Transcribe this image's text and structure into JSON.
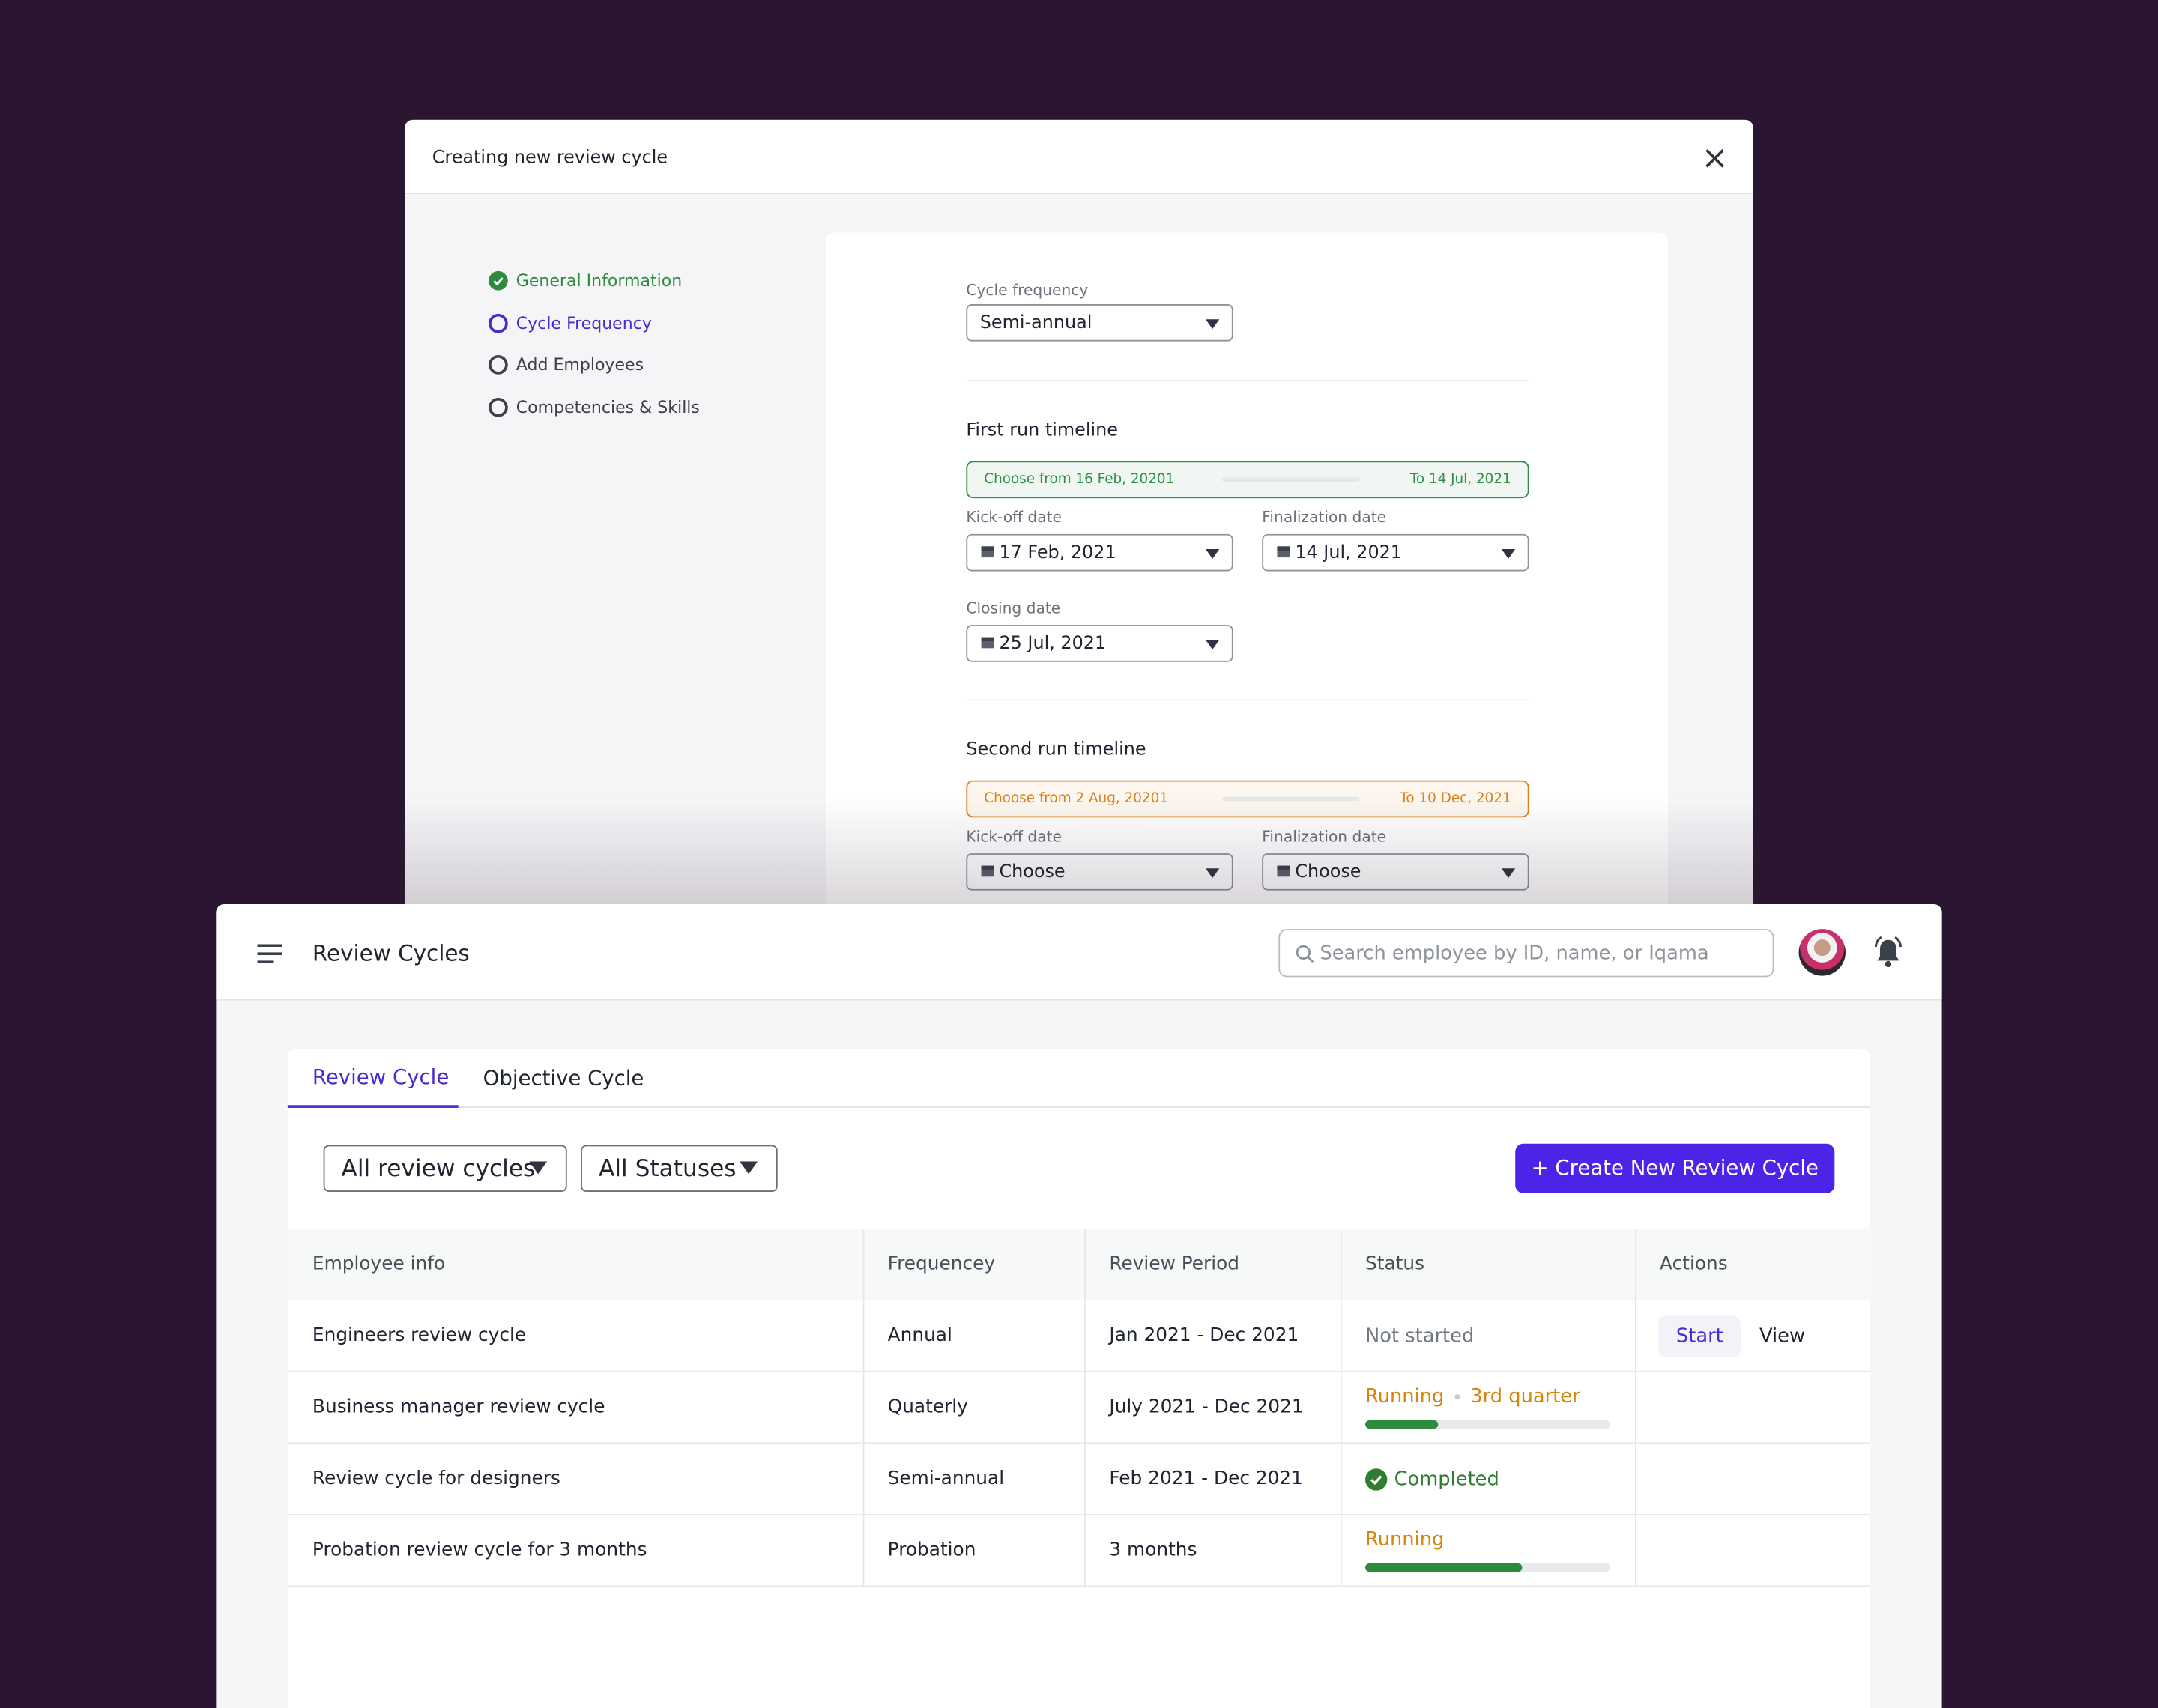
{
  "modal": {
    "title": "Creating new review cycle",
    "steps": [
      "General Information",
      "Cycle Frequency",
      "Add Employees",
      "Competencies & Skills"
    ],
    "form": {
      "cycle_frequency_label": "Cycle frequency",
      "cycle_frequency": "Semi-annual",
      "first_run": {
        "title": "First run timeline",
        "range_from": "Choose from 16 Feb, 20201",
        "range_to": "To 14 Jul, 2021",
        "color": "#2f8f45",
        "kickoff_label": "Kick-off date",
        "kickoff": "17 Feb, 2021",
        "final_label": "Finalization date",
        "final": "14 Jul, 2021",
        "closing_label": "Closing date",
        "closing": "25 Jul, 2021"
      },
      "second_run": {
        "title": "Second run timeline",
        "range_from": "Choose from 2 Aug, 20201",
        "range_to": "To 10 Dec, 2021",
        "color": "#d9821a",
        "kickoff_label": "Kick-off date",
        "kickoff": "Choose",
        "final_label": "Finalization date",
        "final": "Choose"
      }
    }
  },
  "app": {
    "title": "Review Cycles",
    "search_placeholder": "Search employee by ID, name, or Iqama",
    "tabs": [
      "Review Cycle",
      "Objective Cycle"
    ],
    "filters": [
      "All review cycles",
      "All Statuses"
    ],
    "create_button": "+ Create New Review Cycle",
    "table": {
      "headers": [
        "Employee info",
        "Frequencey",
        "Review Period",
        "Status",
        "Actions"
      ],
      "rows": [
        {
          "name": "Engineers review cycle",
          "frequency": "Annual",
          "period": "Jan 2021 - Dec 2021",
          "status": "Not started",
          "status_color": "#707682",
          "actions": [
            "Start",
            "View"
          ]
        },
        {
          "name": "Business manager review cycle",
          "frequency": "Quaterly",
          "period": "July 2021 - Dec 2021",
          "status": "Running",
          "status_color": "#d4860b",
          "phase": "3rd quarter",
          "progress": 30
        },
        {
          "name": "Review cycle for designers",
          "frequency": "Semi-annual",
          "period": "Feb 2021 - Dec 2021",
          "status": "Completed",
          "status_color": "#2e7d32"
        },
        {
          "name": "Probation review cycle for 3 months",
          "frequency": "Probation",
          "period": "3 months",
          "status": "Running",
          "status_color": "#d4860b",
          "progress": 64
        }
      ]
    }
  }
}
